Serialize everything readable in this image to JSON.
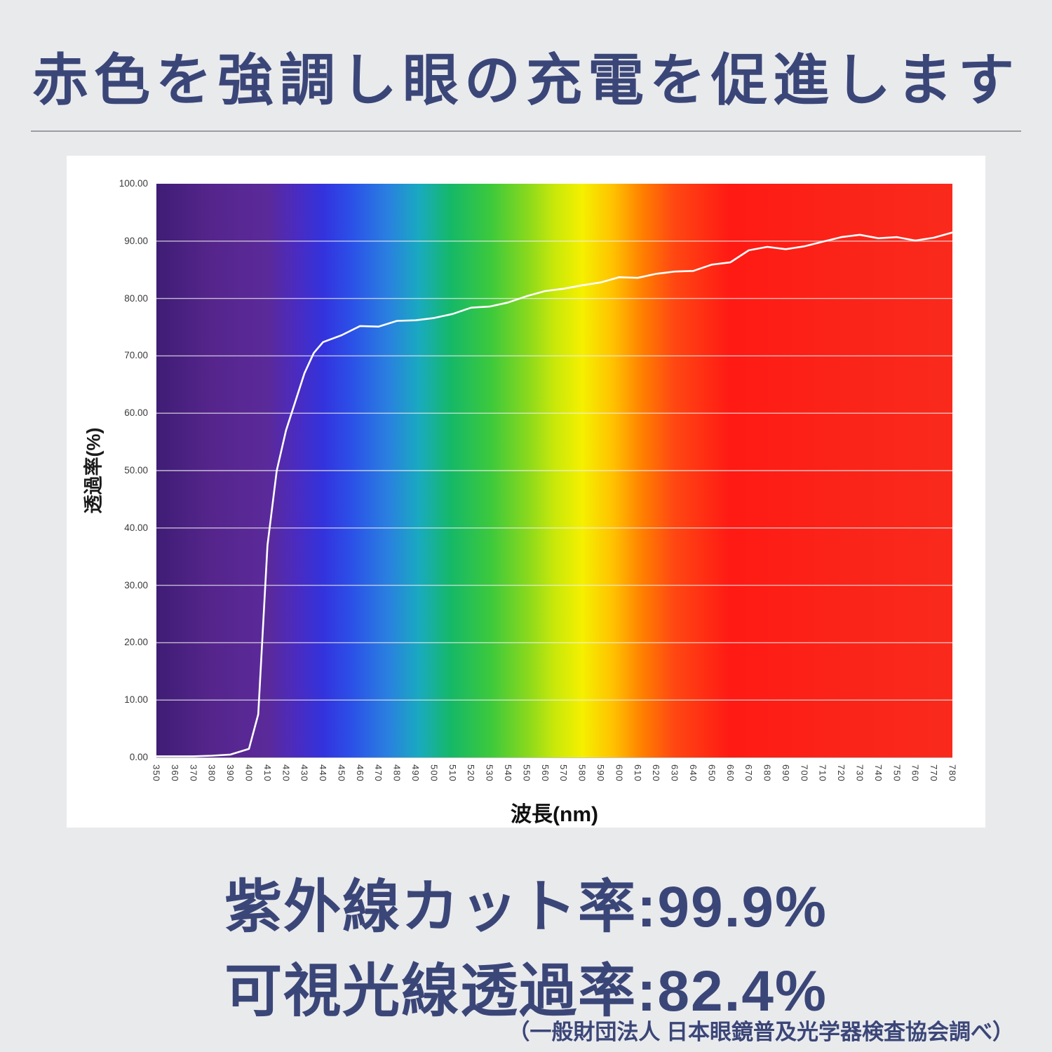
{
  "page": {
    "title": "赤色を強調し眼の充電を促進します",
    "stat_line1": "紫外線カット率:99.9%",
    "stat_line2": "可視光線透過率:82.4%",
    "footnote": "（一般財団法人 日本眼鏡普及光学器検査協会調べ）",
    "colors": {
      "accent_navy": "#3b4678",
      "background": "#e9eaec",
      "panel": "#ffffff",
      "divider": "#9d9da2",
      "curve": "#ffffff"
    }
  },
  "chart_data": {
    "type": "line",
    "title": "",
    "xlabel": "波長(nm)",
    "ylabel": "透過率(%)",
    "xlim": [
      350,
      780
    ],
    "ylim": [
      0,
      100
    ],
    "grid": "horizontal",
    "legend": "none",
    "background": "visible-light-spectrum-gradient",
    "y_ticks": [
      0,
      10,
      20,
      30,
      40,
      50,
      60,
      70,
      80,
      90,
      100
    ],
    "y_tick_format": "two-decimals",
    "x_ticks": [
      350,
      360,
      370,
      380,
      390,
      400,
      410,
      420,
      430,
      440,
      450,
      460,
      470,
      480,
      490,
      500,
      510,
      520,
      530,
      540,
      550,
      560,
      570,
      580,
      590,
      600,
      610,
      620,
      630,
      640,
      650,
      660,
      670,
      680,
      690,
      700,
      710,
      720,
      730,
      740,
      750,
      760,
      770,
      780
    ],
    "spectrum_stops": [
      {
        "at": 0.0,
        "color": "#3f1d75"
      },
      {
        "at": 0.07,
        "color": "#55258c"
      },
      {
        "at": 0.14,
        "color": "#5b2a9a"
      },
      {
        "at": 0.175,
        "color": "#4b2bbf"
      },
      {
        "at": 0.21,
        "color": "#3333dd"
      },
      {
        "at": 0.245,
        "color": "#2b50e8"
      },
      {
        "at": 0.29,
        "color": "#2a7fe0"
      },
      {
        "at": 0.33,
        "color": "#19aac0"
      },
      {
        "at": 0.37,
        "color": "#15b868"
      },
      {
        "at": 0.42,
        "color": "#3cc93c"
      },
      {
        "at": 0.465,
        "color": "#86d81e"
      },
      {
        "at": 0.5,
        "color": "#c8e80a"
      },
      {
        "at": 0.535,
        "color": "#f5f000"
      },
      {
        "at": 0.575,
        "color": "#ffc000"
      },
      {
        "at": 0.61,
        "color": "#ff8000"
      },
      {
        "at": 0.65,
        "color": "#ff4812"
      },
      {
        "at": 0.72,
        "color": "#ff1a14"
      },
      {
        "at": 0.85,
        "color": "#fb2318"
      },
      {
        "at": 1.0,
        "color": "#f92a1c"
      }
    ],
    "series": [
      {
        "name": "透過率",
        "color": "#ffffff",
        "points": [
          [
            350,
            0.2
          ],
          [
            360,
            0.2
          ],
          [
            370,
            0.2
          ],
          [
            380,
            0.3
          ],
          [
            390,
            0.5
          ],
          [
            400,
            1.5
          ],
          [
            405,
            7.5
          ],
          [
            410,
            37
          ],
          [
            415,
            50
          ],
          [
            420,
            57
          ],
          [
            425,
            62
          ],
          [
            430,
            67
          ],
          [
            435,
            70.5
          ],
          [
            440,
            72.4
          ],
          [
            450,
            73.6
          ],
          [
            460,
            75.2
          ],
          [
            470,
            75.1
          ],
          [
            480,
            76.1
          ],
          [
            490,
            76.2
          ],
          [
            500,
            76.6
          ],
          [
            510,
            77.3
          ],
          [
            520,
            78.4
          ],
          [
            530,
            78.6
          ],
          [
            540,
            79.3
          ],
          [
            550,
            80.4
          ],
          [
            560,
            81.3
          ],
          [
            570,
            81.7
          ],
          [
            580,
            82.3
          ],
          [
            590,
            82.8
          ],
          [
            600,
            83.7
          ],
          [
            610,
            83.6
          ],
          [
            620,
            84.3
          ],
          [
            630,
            84.7
          ],
          [
            640,
            84.8
          ],
          [
            650,
            85.9
          ],
          [
            660,
            86.3
          ],
          [
            670,
            88.4
          ],
          [
            680,
            89.0
          ],
          [
            690,
            88.6
          ],
          [
            700,
            89.1
          ],
          [
            710,
            89.9
          ],
          [
            720,
            90.7
          ],
          [
            730,
            91.1
          ],
          [
            740,
            90.5
          ],
          [
            750,
            90.7
          ],
          [
            760,
            90.1
          ],
          [
            770,
            90.6
          ],
          [
            780,
            91.5
          ]
        ]
      }
    ]
  }
}
